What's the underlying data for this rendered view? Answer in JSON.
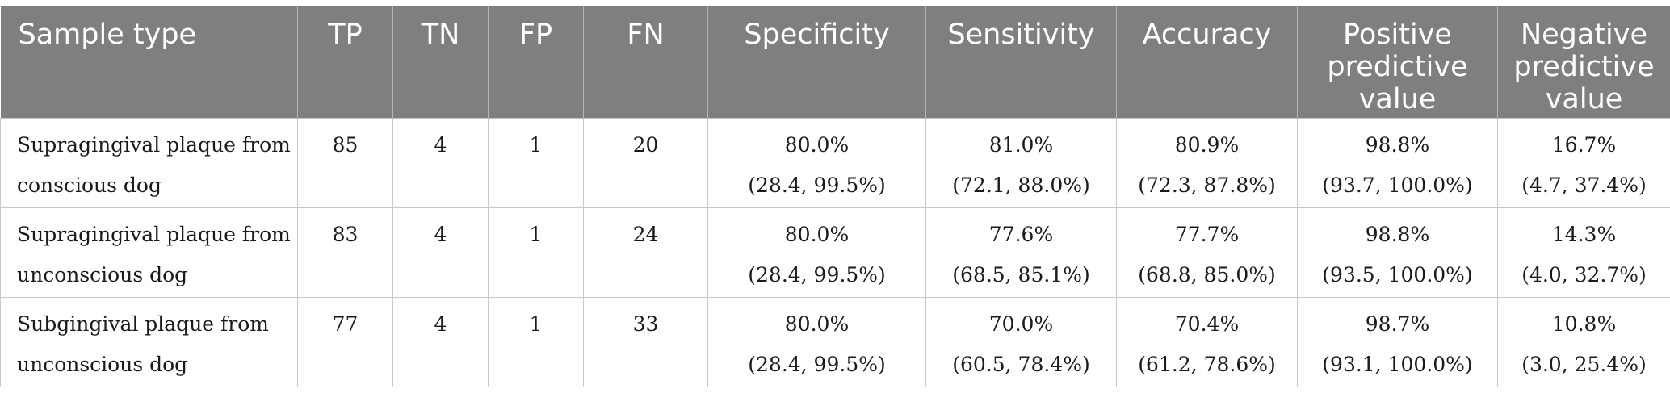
{
  "table": {
    "headers": [
      "Sample type",
      "TP",
      "TN",
      "FP",
      "FN",
      "Specificity",
      "Sensitivity",
      "Accuracy",
      "Positive predictive value",
      "Negative predictive value"
    ],
    "rows": [
      {
        "sample_type": [
          "Supragingival plaque from",
          "conscious dog"
        ],
        "tp": "85",
        "tn": "4",
        "fp": "1",
        "fn": "20",
        "specificity": [
          "80.0%",
          "(28.4, 99.5%)"
        ],
        "sensitivity": [
          "81.0%",
          "(72.1, 88.0%)"
        ],
        "accuracy": [
          "80.9%",
          "(72.3, 87.8%)"
        ],
        "ppv": [
          "98.8%",
          "(93.7, 100.0%)"
        ],
        "npv": [
          "16.7%",
          "(4.7, 37.4%)"
        ]
      },
      {
        "sample_type": [
          "Supragingival plaque from",
          "unconscious dog"
        ],
        "tp": "83",
        "tn": "4",
        "fp": "1",
        "fn": "24",
        "specificity": [
          "80.0%",
          "(28.4, 99.5%)"
        ],
        "sensitivity": [
          "77.6%",
          "(68.5, 85.1%)"
        ],
        "accuracy": [
          "77.7%",
          "(68.8, 85.0%)"
        ],
        "ppv": [
          "98.8%",
          "(93.5, 100.0%)"
        ],
        "npv": [
          "14.3%",
          "(4.0, 32.7%)"
        ]
      },
      {
        "sample_type": [
          "Subgingival plaque from",
          "unconscious dog"
        ],
        "tp": "77",
        "tn": "4",
        "fp": "1",
        "fn": "33",
        "specificity": [
          "80.0%",
          "(28.4, 99.5%)"
        ],
        "sensitivity": [
          "70.0%",
          "(60.5, 78.4%)"
        ],
        "accuracy": [
          "70.4%",
          "(61.2, 78.6%)"
        ],
        "ppv": [
          "98.7%",
          "(93.1, 100.0%)"
        ],
        "npv": [
          "10.8%",
          "(3.0, 25.4%)"
        ]
      }
    ]
  },
  "colors": {
    "header_background": "#7f7f7f",
    "header_text": "#ffffff",
    "cell_border": "#c8c8c8"
  }
}
